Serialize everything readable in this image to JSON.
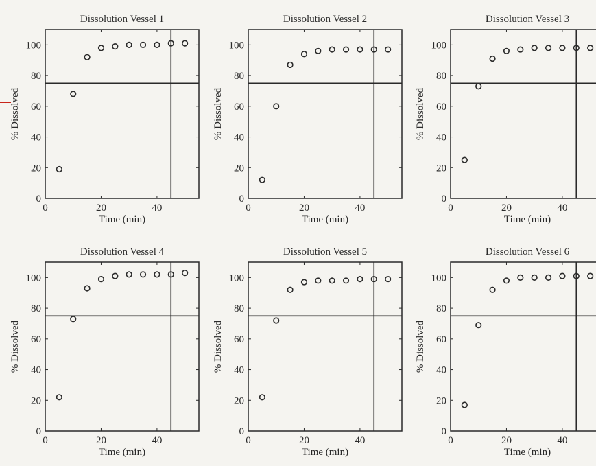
{
  "chart_data": [
    {
      "type": "scatter",
      "title": "Dissolution Vessel 1",
      "xlabel": "Time (min)",
      "ylabel": "% Dissolved",
      "xlim": [
        0,
        55
      ],
      "ylim": [
        0,
        110
      ],
      "xticks": [
        0,
        20,
        40
      ],
      "yticks": [
        0,
        20,
        40,
        60,
        80,
        100
      ],
      "grid": false,
      "x": [
        5,
        10,
        15,
        20,
        25,
        30,
        35,
        40,
        45,
        50
      ],
      "y": [
        19,
        68,
        92,
        98,
        99,
        100,
        100,
        100,
        101,
        101
      ],
      "hline": 75,
      "vline": 45
    },
    {
      "type": "scatter",
      "title": "Dissolution Vessel 2",
      "xlabel": "Time (min)",
      "ylabel": "% Dissolved",
      "xlim": [
        0,
        55
      ],
      "ylim": [
        0,
        110
      ],
      "xticks": [
        0,
        20,
        40
      ],
      "yticks": [
        0,
        20,
        40,
        60,
        80,
        100
      ],
      "grid": false,
      "x": [
        5,
        10,
        15,
        20,
        25,
        30,
        35,
        40,
        45,
        50
      ],
      "y": [
        12,
        60,
        87,
        94,
        96,
        97,
        97,
        97,
        97,
        97
      ],
      "hline": 75,
      "vline": 45
    },
    {
      "type": "scatter",
      "title": "Dissolution Vessel 3",
      "xlabel": "Time (min)",
      "ylabel": "% Dissolved",
      "xlim": [
        0,
        55
      ],
      "ylim": [
        0,
        110
      ],
      "xticks": [
        0,
        20,
        40
      ],
      "yticks": [
        0,
        20,
        40,
        60,
        80,
        100
      ],
      "grid": false,
      "x": [
        5,
        10,
        15,
        20,
        25,
        30,
        35,
        40,
        45,
        50
      ],
      "y": [
        25,
        73,
        91,
        96,
        97,
        98,
        98,
        98,
        98,
        98
      ],
      "hline": 75,
      "vline": 45
    },
    {
      "type": "scatter",
      "title": "Dissolution Vessel 4",
      "xlabel": "Time (min)",
      "ylabel": "% Dissolved",
      "xlim": [
        0,
        55
      ],
      "ylim": [
        0,
        110
      ],
      "xticks": [
        0,
        20,
        40
      ],
      "yticks": [
        0,
        20,
        40,
        60,
        80,
        100
      ],
      "grid": false,
      "x": [
        5,
        10,
        15,
        20,
        25,
        30,
        35,
        40,
        45,
        50
      ],
      "y": [
        22,
        73,
        93,
        99,
        101,
        102,
        102,
        102,
        102,
        103
      ],
      "hline": 75,
      "vline": 45
    },
    {
      "type": "scatter",
      "title": "Dissolution Vessel 5",
      "xlabel": "Time (min)",
      "ylabel": "% Dissolved",
      "xlim": [
        0,
        55
      ],
      "ylim": [
        0,
        110
      ],
      "xticks": [
        0,
        20,
        40
      ],
      "yticks": [
        0,
        20,
        40,
        60,
        80,
        100
      ],
      "grid": false,
      "x": [
        5,
        10,
        15,
        20,
        25,
        30,
        35,
        40,
        45,
        50
      ],
      "y": [
        22,
        72,
        92,
        97,
        98,
        98,
        98,
        99,
        99,
        99
      ],
      "hline": 75,
      "vline": 45
    },
    {
      "type": "scatter",
      "title": "Dissolution Vessel 6",
      "xlabel": "Time (min)",
      "ylabel": "% Dissolved",
      "xlim": [
        0,
        55
      ],
      "ylim": [
        0,
        110
      ],
      "xticks": [
        0,
        20,
        40
      ],
      "yticks": [
        0,
        20,
        40,
        60,
        80,
        100
      ],
      "grid": false,
      "x": [
        5,
        10,
        15,
        20,
        25,
        30,
        35,
        40,
        45,
        50
      ],
      "y": [
        17,
        69,
        92,
        98,
        100,
        100,
        100,
        101,
        101,
        101
      ],
      "hline": 75,
      "vline": 45
    }
  ]
}
